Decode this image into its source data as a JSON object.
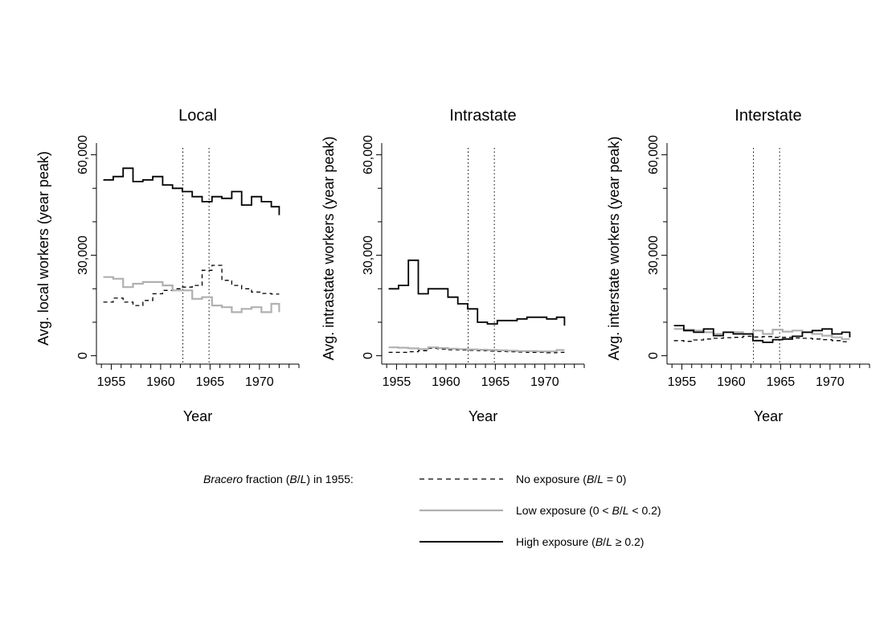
{
  "chart_data": [
    {
      "type": "line",
      "title": "Local",
      "xlabel": "Year",
      "ylabel": "Avg. local workers (year peak)",
      "xlim": [
        1953.5,
        1974
      ],
      "ylim": [
        -2500,
        63500
      ],
      "x_ticks": [
        1955,
        1960,
        1965,
        1970
      ],
      "x_tick_labels": [
        "1955",
        "1960",
        "1965",
        "1970"
      ],
      "y_ticks": [
        0,
        30000,
        60000
      ],
      "y_tick_labels": [
        "0",
        "30,000",
        "60,000"
      ],
      "y_minor_ticks": [
        10000,
        20000,
        40000,
        50000
      ],
      "reference_lines": [
        1962.25,
        1964.9
      ],
      "step": true,
      "x": [
        1954.2,
        1955.2,
        1956.2,
        1957.2,
        1958.2,
        1959.2,
        1960.2,
        1961.2,
        1962.2,
        1963.2,
        1964.2,
        1965.2,
        1966.2,
        1967.2,
        1968.2,
        1969.2,
        1970.2,
        1971.2,
        1972.0
      ],
      "series": [
        {
          "name": "No exposure",
          "style": "dashed",
          "color": "#000000",
          "values": [
            16000,
            17200,
            16000,
            15000,
            16500,
            18500,
            19500,
            20000,
            20500,
            21000,
            25500,
            27000,
            22500,
            21000,
            20000,
            19000,
            18600,
            18400,
            18400
          ]
        },
        {
          "name": "Low exposure",
          "style": "solid",
          "color": "#b0b0b0",
          "values": [
            23500,
            23000,
            20500,
            21500,
            22000,
            22000,
            21000,
            19500,
            19500,
            17000,
            17500,
            15000,
            14500,
            13000,
            14000,
            14500,
            13000,
            15500,
            13000
          ]
        },
        {
          "name": "High exposure",
          "style": "solid",
          "color": "#000000",
          "values": [
            52500,
            53500,
            56000,
            52000,
            52500,
            53500,
            51000,
            50000,
            49000,
            47500,
            46000,
            47500,
            47000,
            49000,
            45000,
            47500,
            46000,
            44500,
            42000
          ]
        }
      ]
    },
    {
      "type": "line",
      "title": "Intrastate",
      "xlabel": "Year",
      "ylabel": "Avg. intrastate workers (year peak)",
      "xlim": [
        1953.5,
        1974
      ],
      "ylim": [
        -2500,
        63500
      ],
      "x_ticks": [
        1955,
        1960,
        1965,
        1970
      ],
      "x_tick_labels": [
        "1955",
        "1960",
        "1965",
        "1970"
      ],
      "y_ticks": [
        0,
        30000,
        60000
      ],
      "y_tick_labels": [
        "0",
        "30,000",
        "60,000"
      ],
      "y_minor_ticks": [
        10000,
        20000,
        40000,
        50000
      ],
      "reference_lines": [
        1962.25,
        1964.9
      ],
      "step": true,
      "x": [
        1954.2,
        1955.2,
        1956.2,
        1957.2,
        1958.2,
        1959.2,
        1960.2,
        1961.2,
        1962.2,
        1963.2,
        1964.2,
        1965.2,
        1966.2,
        1967.2,
        1968.2,
        1969.2,
        1970.2,
        1971.2,
        1972.0
      ],
      "series": [
        {
          "name": "No exposure",
          "style": "dashed",
          "color": "#000000",
          "values": [
            1000,
            1000,
            1200,
            1500,
            2200,
            2000,
            1800,
            1700,
            1600,
            1500,
            1400,
            1300,
            1200,
            1100,
            1000,
            1000,
            900,
            1000,
            1000
          ]
        },
        {
          "name": "Low exposure",
          "style": "solid",
          "color": "#b0b0b0",
          "values": [
            2500,
            2400,
            2200,
            2000,
            2500,
            2300,
            2100,
            2000,
            1900,
            1800,
            1700,
            1600,
            1500,
            1400,
            1400,
            1300,
            1300,
            1700,
            1700
          ]
        },
        {
          "name": "High exposure",
          "style": "solid",
          "color": "#000000",
          "values": [
            20000,
            21000,
            28500,
            18500,
            20000,
            20000,
            17500,
            15500,
            14000,
            10000,
            9500,
            10500,
            10500,
            11000,
            11500,
            11500,
            11000,
            11500,
            9000
          ]
        }
      ]
    },
    {
      "type": "line",
      "title": "Interstate",
      "xlabel": "Year",
      "ylabel": "Avg. interstate workers (year peak)",
      "xlim": [
        1953.5,
        1974
      ],
      "ylim": [
        -2500,
        63500
      ],
      "x_ticks": [
        1955,
        1960,
        1965,
        1970
      ],
      "x_tick_labels": [
        "1955",
        "1960",
        "1965",
        "1970"
      ],
      "y_ticks": [
        0,
        30000,
        60000
      ],
      "y_tick_labels": [
        "0",
        "30,000",
        "60,000"
      ],
      "y_minor_ticks": [
        10000,
        20000,
        40000,
        50000
      ],
      "reference_lines": [
        1962.25,
        1964.9
      ],
      "step": true,
      "x": [
        1954.2,
        1955.2,
        1956.2,
        1957.2,
        1958.2,
        1959.2,
        1960.2,
        1961.2,
        1962.2,
        1963.2,
        1964.2,
        1965.2,
        1966.2,
        1967.2,
        1968.2,
        1969.2,
        1970.2,
        1971.2,
        1972.0
      ],
      "series": [
        {
          "name": "No exposure",
          "style": "dashed",
          "color": "#000000",
          "values": [
            4500,
            4300,
            4700,
            5000,
            5200,
            5400,
            5500,
            5800,
            5600,
            5700,
            5500,
            5500,
            5300,
            5200,
            5000,
            4800,
            4500,
            4200,
            4200
          ]
        },
        {
          "name": "Low exposure",
          "style": "solid",
          "color": "#b0b0b0",
          "values": [
            8000,
            7800,
            7500,
            7000,
            6500,
            7000,
            7000,
            6500,
            7500,
            6500,
            7800,
            7200,
            7500,
            7000,
            6500,
            6000,
            5500,
            5000,
            5000
          ]
        },
        {
          "name": "High exposure",
          "style": "solid",
          "color": "#000000",
          "values": [
            9000,
            7500,
            7000,
            8000,
            6000,
            7000,
            6500,
            6500,
            4500,
            4000,
            4800,
            5000,
            5800,
            7000,
            7500,
            8000,
            6500,
            7000,
            5500
          ]
        }
      ]
    }
  ],
  "legend": {
    "heading_italic": "Bracero",
    "heading_rest_1": " fraction (",
    "heading_B": "B",
    "heading_slash": "/",
    "heading_L": "L",
    "heading_rest_2": ") in 1955:",
    "items": [
      {
        "style": "dashed",
        "color": "#000000",
        "text_before": "No exposure (",
        "B": "B",
        "slash": "/",
        "L": "L",
        "text_after": " = 0)"
      },
      {
        "style": "solid",
        "color": "#b0b0b0",
        "text_before": "Low exposure (0 < ",
        "B": "B",
        "slash": "/",
        "L": "L",
        "text_after": " < 0.2)"
      },
      {
        "style": "solid",
        "color": "#000000",
        "text_before": "High exposure (",
        "B": "B",
        "slash": "/",
        "L": "L",
        "text_after": " ≥ 0.2)"
      }
    ]
  }
}
